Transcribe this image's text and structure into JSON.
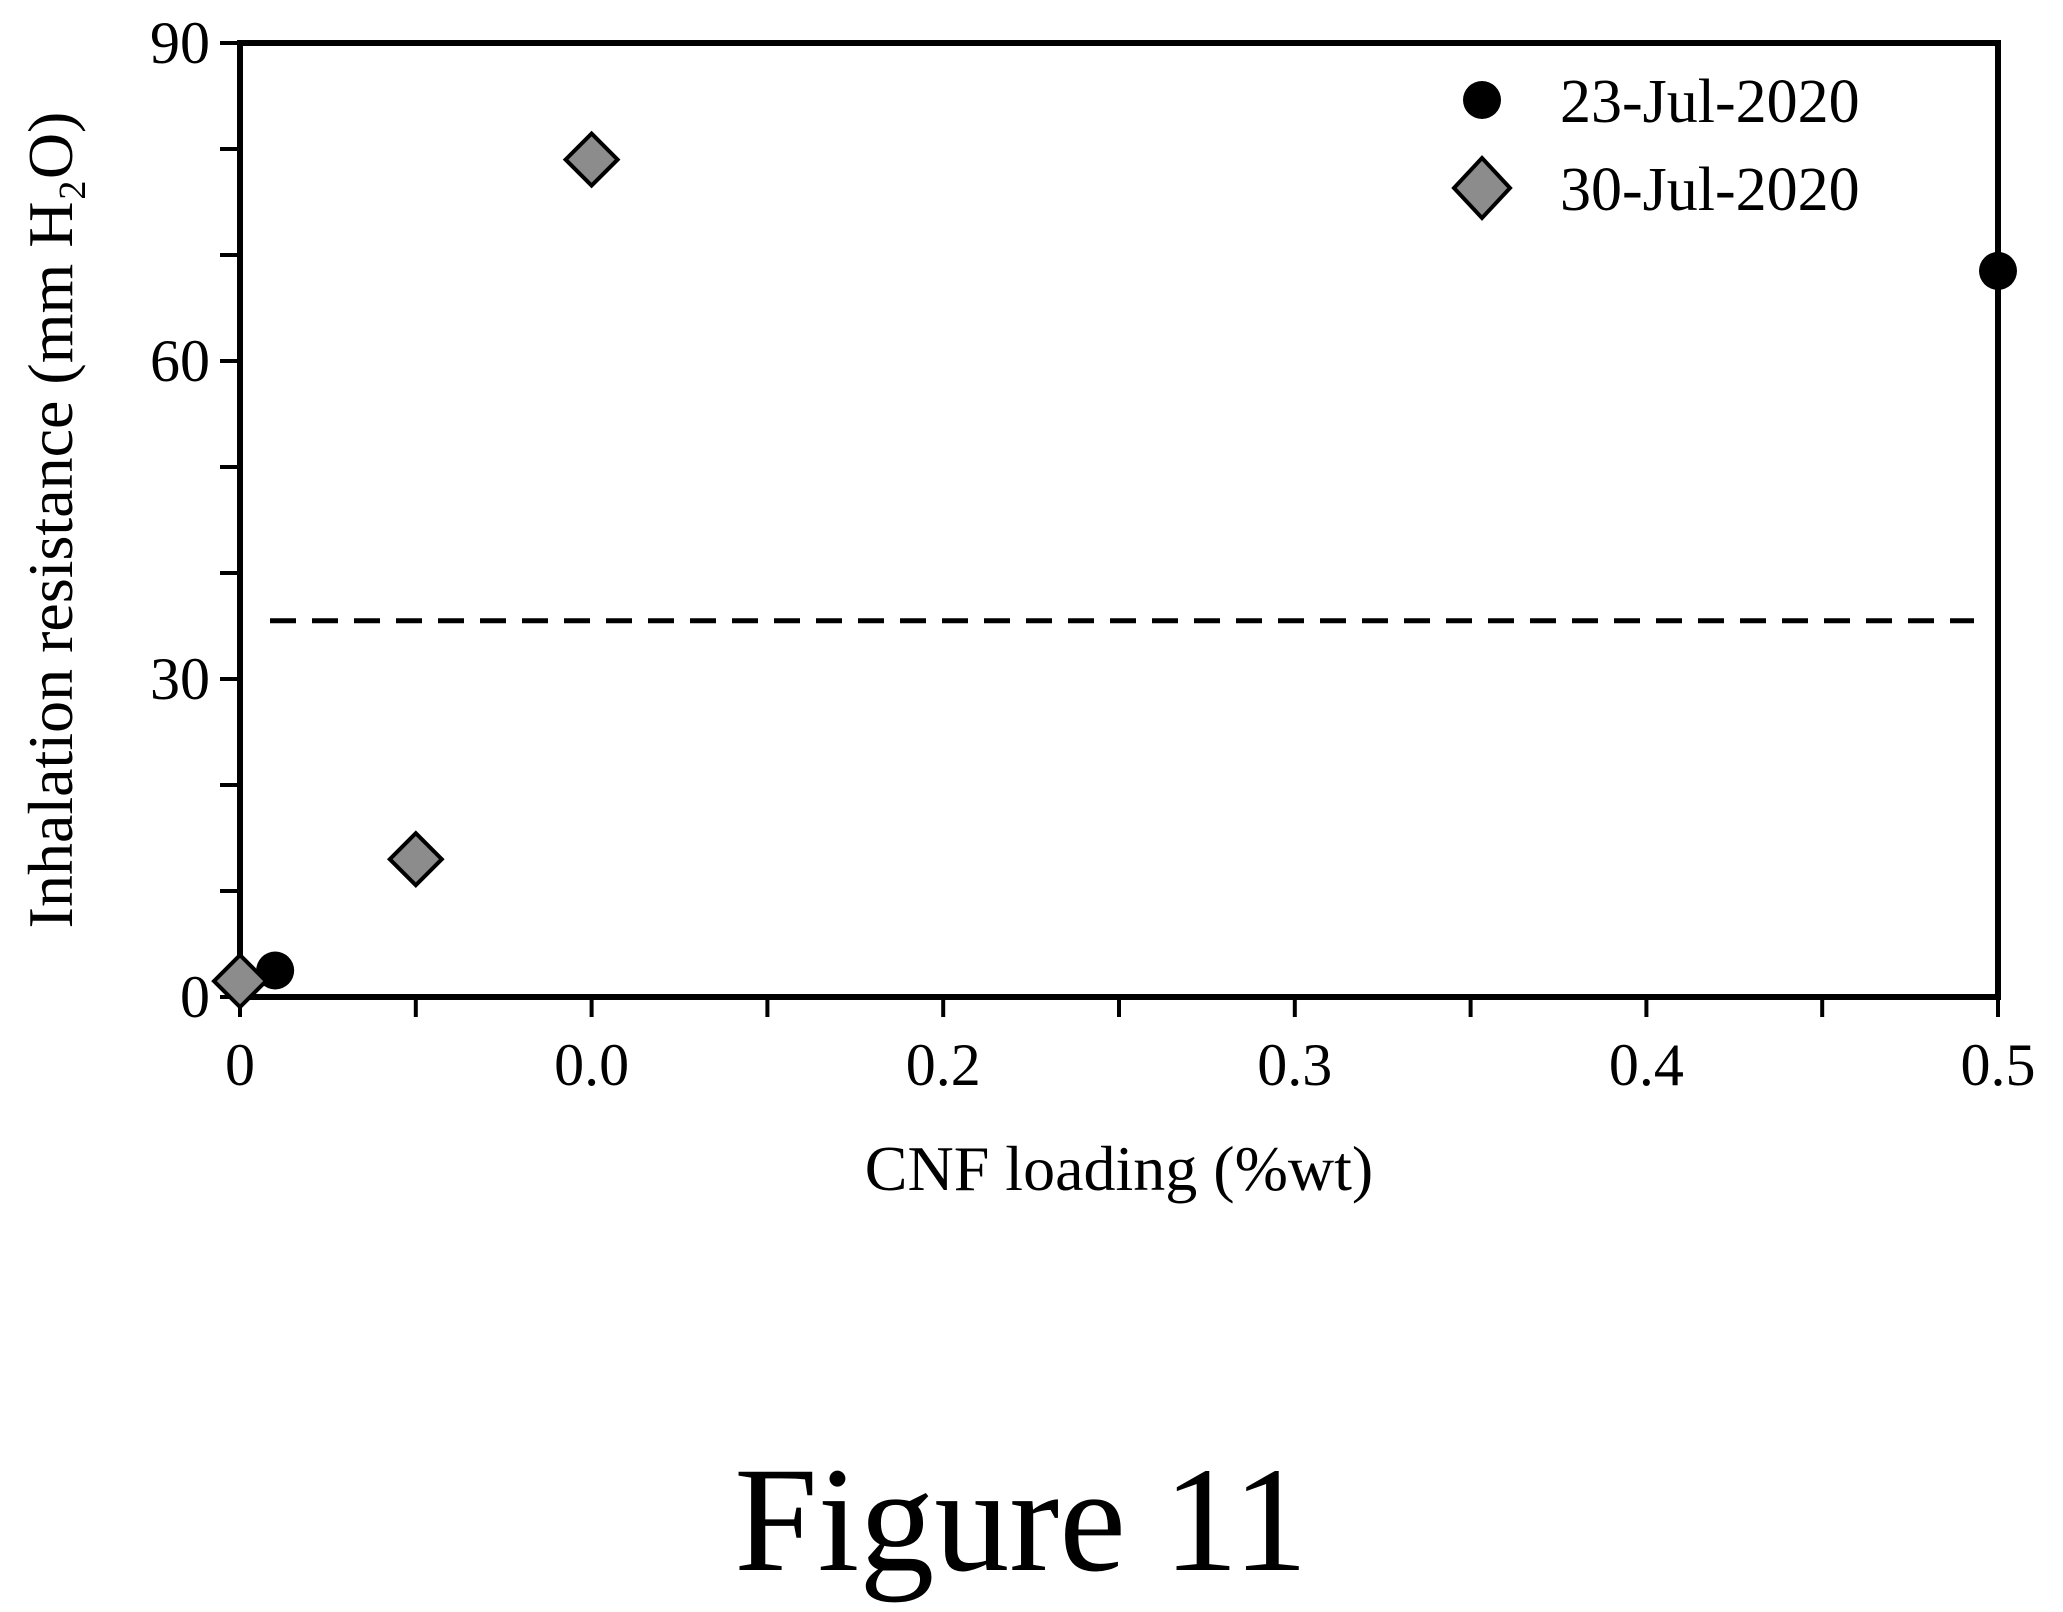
{
  "chart_data": {
    "type": "scatter",
    "xlabel": "CNF loading (%wt)",
    "ylabel": "Inhalation resistance (mm H₂O)",
    "xlim": [
      0,
      0.5
    ],
    "ylim": [
      0,
      90
    ],
    "x_ticks": [
      0,
      0.05,
      0.1,
      0.15,
      0.2,
      0.25,
      0.3,
      0.35,
      0.4,
      0.45,
      0.5
    ],
    "x_tick_labels": [
      "0",
      "0.0",
      "0.2",
      "0.3",
      "0.4",
      "0.5"
    ],
    "x_tick_label_positions": [
      0,
      0.1,
      0.2,
      0.3,
      0.4,
      0.5
    ],
    "y_ticks": [
      0,
      10,
      20,
      30,
      40,
      50,
      60,
      70,
      80,
      90
    ],
    "y_tick_labels": [
      "0",
      "30",
      "60",
      "90"
    ],
    "y_tick_label_positions": [
      0,
      30,
      60,
      90
    ],
    "reference_line": {
      "y": 35.5,
      "style": "dashed"
    },
    "legend_position": "top-right",
    "series": [
      {
        "name": "23-Jul-2020",
        "marker": "circle",
        "color": "#000000",
        "points": [
          {
            "x": 0.01,
            "y": 2.5
          },
          {
            "x": 0.5,
            "y": 68.5
          }
        ]
      },
      {
        "name": "30-Jul-2020",
        "marker": "diamond",
        "color": "#8c8c8c",
        "points": [
          {
            "x": 0.0,
            "y": 1.5
          },
          {
            "x": 0.05,
            "y": 13.0
          },
          {
            "x": 0.1,
            "y": 79.0
          }
        ]
      }
    ]
  },
  "caption": "Figure 11"
}
